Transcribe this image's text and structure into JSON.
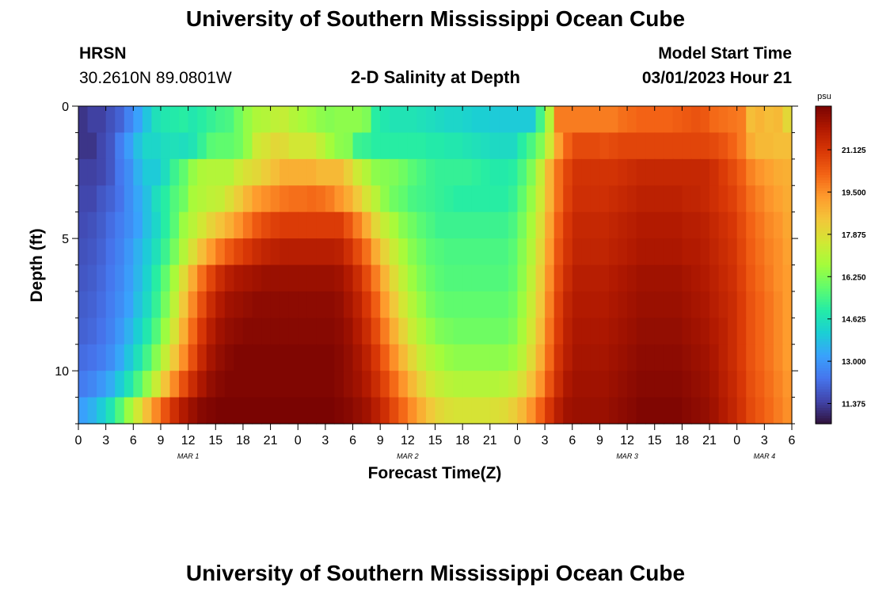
{
  "header": {
    "title_top": "University of Southern Mississippi Ocean Cube",
    "title_bottom": "University of Southern Mississippi Ocean Cube",
    "station": "HRSN",
    "coords": "30.2610N  89.0801W",
    "plot_title": "2-D Salinity at Depth",
    "model_label": "Model Start Time",
    "model_time": "03/01/2023 Hour 21"
  },
  "chart_data": {
    "type": "heatmap",
    "title": "2-D Salinity at Depth",
    "xlabel": "Forecast Time(Z)",
    "ylabel": "Depth (ft)",
    "x_ticks": [
      "0",
      "3",
      "6",
      "9",
      "12",
      "15",
      "18",
      "21",
      "0",
      "3",
      "6",
      "9",
      "12",
      "15",
      "18",
      "21",
      "0",
      "3",
      "6",
      "9",
      "12",
      "15",
      "18",
      "21",
      "0",
      "3",
      "6"
    ],
    "day_labels": [
      {
        "label": "MAR 1",
        "tick_index": 4
      },
      {
        "label": "MAR 2",
        "tick_index": 12
      },
      {
        "label": "MAR 3",
        "tick_index": 20
      },
      {
        "label": "MAR 4",
        "tick_index": 25
      }
    ],
    "hours": 78,
    "y_ticks": [
      0,
      5,
      10
    ],
    "y_range": [
      0,
      12
    ],
    "depth_levels": 12,
    "colorbar": {
      "unit": "psu",
      "vmin": 10.6,
      "vmax": 22.8,
      "ticks": [
        "11.375",
        "13.000",
        "14.625",
        "16.250",
        "17.875",
        "19.500",
        "21.125"
      ],
      "tick_values": [
        11.375,
        13.0,
        14.625,
        16.25,
        17.875,
        19.5,
        21.125
      ]
    },
    "colormap": [
      "#30123b",
      "#4145ab",
      "#4675ed",
      "#39a2fc",
      "#1bcfd4",
      "#24eca6",
      "#61fc6c",
      "#a4fc3b",
      "#d1e834",
      "#f3c63a",
      "#fe9b2d",
      "#f36315",
      "#d93806",
      "#b11901",
      "#7a0402"
    ],
    "salinity_grid": [
      [
        11.2,
        11.4,
        11.4,
        11.7,
        12.0,
        12.6,
        13.2,
        13.9,
        14.6,
        14.8,
        14.9,
        15.0,
        14.8,
        15.0,
        15.2,
        15.4,
        15.5,
        16.0,
        16.5,
        16.9,
        17.0,
        17.2,
        17.3,
        17.0,
        16.8,
        16.6,
        16.4,
        16.3,
        16.4,
        16.4,
        16.4,
        16.2,
        15.0,
        14.8,
        14.7,
        14.7,
        14.7,
        14.6,
        14.5,
        14.4,
        14.3,
        14.3,
        14.2,
        14.1,
        14.1,
        14.0,
        14.0,
        14.0,
        14.0,
        14.0,
        15.4,
        17.0,
        19.8,
        19.8,
        19.8,
        19.8,
        19.8,
        19.8,
        19.8,
        20.0,
        20.1,
        20.2,
        20.2,
        20.2,
        20.2,
        20.3,
        20.4,
        20.5,
        20.4,
        20.1,
        20.0,
        19.9,
        19.8,
        18.6,
        18.8,
        18.6,
        18.7,
        18.0
      ],
      [
        11.2,
        11.2,
        11.5,
        11.8,
        12.5,
        13.1,
        13.8,
        14.3,
        14.3,
        14.5,
        14.6,
        14.5,
        14.7,
        15.2,
        15.7,
        15.8,
        15.8,
        16.0,
        16.5,
        17.5,
        17.7,
        18.0,
        17.9,
        17.6,
        17.6,
        17.6,
        17.2,
        16.7,
        16.4,
        16.3,
        15.3,
        15.2,
        15.0,
        15.0,
        15.0,
        15.0,
        15.0,
        15.0,
        14.9,
        14.9,
        14.8,
        14.8,
        14.7,
        14.6,
        14.5,
        14.4,
        14.4,
        14.4,
        15.0,
        15.5,
        16.2,
        17.5,
        19.2,
        20.2,
        20.7,
        20.7,
        20.7,
        20.6,
        20.7,
        20.8,
        20.8,
        20.8,
        20.8,
        20.8,
        20.8,
        20.8,
        20.8,
        20.8,
        20.8,
        20.7,
        20.5,
        20.2,
        19.8,
        19.0,
        18.7,
        18.7,
        18.6,
        18.6
      ],
      [
        11.4,
        11.4,
        11.5,
        11.8,
        12.4,
        12.8,
        13.5,
        14.0,
        14.0,
        14.5,
        15.3,
        15.8,
        16.5,
        16.9,
        17.0,
        17.0,
        17.0,
        17.5,
        17.8,
        18.0,
        18.3,
        18.6,
        18.9,
        18.9,
        18.9,
        18.9,
        18.7,
        18.7,
        18.7,
        18.2,
        17.5,
        17.0,
        16.4,
        16.3,
        16.2,
        16.0,
        15.7,
        15.5,
        15.3,
        15.2,
        15.2,
        15.2,
        15.2,
        15.1,
        15.0,
        14.9,
        14.9,
        15.0,
        15.5,
        16.2,
        17.3,
        18.8,
        20.0,
        20.8,
        21.2,
        21.2,
        21.2,
        21.2,
        21.2,
        21.3,
        21.4,
        21.5,
        21.5,
        21.5,
        21.5,
        21.5,
        21.5,
        21.5,
        21.5,
        21.3,
        21.0,
        20.7,
        20.3,
        19.7,
        19.4,
        19.2,
        19.0,
        18.9
      ],
      [
        11.5,
        11.5,
        11.8,
        12.0,
        12.3,
        12.8,
        13.3,
        13.8,
        14.5,
        15.0,
        15.6,
        16.0,
        16.8,
        17.0,
        17.2,
        17.3,
        17.8,
        18.3,
        18.8,
        19.3,
        19.5,
        19.7,
        19.9,
        20.0,
        20.0,
        20.1,
        20.0,
        19.8,
        19.4,
        19.0,
        18.4,
        17.7,
        17.1,
        16.4,
        16.0,
        15.8,
        15.5,
        15.4,
        15.3,
        15.2,
        15.1,
        15.0,
        15.0,
        15.0,
        15.0,
        15.0,
        15.0,
        15.2,
        15.8,
        16.5,
        17.5,
        18.8,
        20.0,
        20.9,
        21.3,
        21.3,
        21.3,
        21.3,
        21.4,
        21.5,
        21.6,
        21.7,
        21.7,
        21.7,
        21.7,
        21.7,
        21.6,
        21.6,
        21.5,
        21.3,
        21.1,
        20.9,
        20.5,
        20.0,
        19.7,
        19.4,
        19.2,
        19.0
      ],
      [
        11.6,
        11.7,
        11.9,
        12.2,
        12.5,
        12.8,
        13.2,
        13.8,
        14.3,
        15.0,
        15.7,
        16.6,
        17.1,
        17.6,
        18.1,
        18.5,
        18.9,
        19.4,
        19.9,
        20.4,
        20.7,
        20.9,
        21.0,
        21.0,
        21.0,
        21.0,
        21.0,
        21.0,
        21.0,
        20.5,
        19.8,
        19.0,
        18.0,
        17.3,
        16.8,
        16.3,
        16.0,
        15.7,
        15.5,
        15.3,
        15.3,
        15.3,
        15.3,
        15.3,
        15.3,
        15.3,
        15.3,
        15.5,
        16.1,
        16.8,
        17.8,
        19.1,
        20.3,
        21.1,
        21.5,
        21.5,
        21.5,
        21.5,
        21.6,
        21.7,
        21.8,
        21.9,
        21.9,
        21.9,
        21.9,
        21.9,
        21.8,
        21.8,
        21.7,
        21.5,
        21.3,
        21.1,
        20.7,
        20.2,
        19.9,
        19.6,
        19.4,
        19.1
      ],
      [
        11.7,
        11.8,
        12.0,
        12.3,
        12.6,
        13.0,
        13.5,
        14.0,
        14.6,
        15.3,
        16.1,
        17.0,
        17.8,
        18.6,
        19.3,
        19.9,
        20.4,
        20.8,
        21.1,
        21.4,
        21.6,
        21.7,
        21.8,
        21.8,
        21.8,
        21.8,
        21.8,
        21.8,
        21.7,
        21.3,
        20.7,
        20.0,
        19.0,
        18.1,
        17.4,
        16.8,
        16.3,
        16.0,
        15.7,
        15.6,
        15.5,
        15.5,
        15.5,
        15.5,
        15.5,
        15.5,
        15.5,
        15.7,
        16.3,
        17.0,
        18.0,
        19.3,
        20.5,
        21.2,
        21.6,
        21.6,
        21.6,
        21.6,
        21.7,
        21.8,
        21.9,
        22.0,
        22.0,
        22.0,
        22.0,
        22.0,
        21.9,
        21.9,
        21.8,
        21.6,
        21.4,
        21.2,
        20.8,
        20.3,
        20.0,
        19.7,
        19.5,
        19.2
      ],
      [
        11.8,
        11.9,
        12.1,
        12.4,
        12.7,
        13.1,
        13.6,
        14.2,
        15.0,
        15.8,
        16.8,
        17.9,
        19.0,
        20.0,
        20.8,
        21.4,
        21.8,
        22.0,
        22.1,
        22.2,
        22.3,
        22.3,
        22.3,
        22.3,
        22.3,
        22.3,
        22.3,
        22.3,
        22.2,
        21.9,
        21.4,
        20.7,
        19.8,
        18.8,
        17.9,
        17.2,
        16.6,
        16.2,
        15.9,
        15.7,
        15.6,
        15.6,
        15.6,
        15.6,
        15.6,
        15.6,
        15.6,
        15.8,
        16.4,
        17.2,
        18.2,
        19.5,
        20.7,
        21.4,
        21.8,
        21.8,
        21.8,
        21.8,
        21.9,
        22.0,
        22.1,
        22.2,
        22.2,
        22.2,
        22.2,
        22.2,
        22.1,
        22.0,
        21.9,
        21.7,
        21.5,
        21.3,
        20.9,
        20.4,
        20.1,
        19.8,
        19.5,
        19.3
      ],
      [
        11.9,
        12.0,
        12.2,
        12.5,
        12.8,
        13.2,
        13.8,
        14.4,
        15.2,
        16.1,
        17.2,
        18.4,
        19.6,
        20.6,
        21.4,
        21.9,
        22.2,
        22.3,
        22.4,
        22.5,
        22.5,
        22.5,
        22.5,
        22.5,
        22.5,
        22.5,
        22.5,
        22.5,
        22.4,
        22.1,
        21.7,
        21.1,
        20.3,
        19.3,
        18.4,
        17.6,
        17.0,
        16.5,
        16.1,
        15.9,
        15.8,
        15.8,
        15.8,
        15.8,
        15.8,
        15.8,
        15.8,
        16.0,
        16.6,
        17.4,
        18.4,
        19.7,
        20.9,
        21.6,
        21.9,
        21.9,
        21.9,
        21.9,
        22.0,
        22.1,
        22.2,
        22.3,
        22.3,
        22.3,
        22.3,
        22.3,
        22.2,
        22.1,
        22.0,
        21.8,
        21.6,
        21.4,
        21.0,
        20.5,
        20.2,
        19.9,
        19.6,
        19.3
      ],
      [
        12.0,
        12.1,
        12.3,
        12.6,
        13.0,
        13.5,
        14.1,
        14.8,
        15.6,
        16.6,
        17.7,
        18.9,
        20.1,
        21.1,
        21.8,
        22.2,
        22.4,
        22.5,
        22.6,
        22.6,
        22.6,
        22.6,
        22.6,
        22.6,
        22.6,
        22.6,
        22.6,
        22.6,
        22.5,
        22.3,
        21.9,
        21.4,
        20.7,
        19.8,
        18.9,
        18.1,
        17.4,
        16.9,
        16.5,
        16.2,
        16.1,
        16.0,
        16.0,
        16.0,
        16.0,
        16.0,
        16.0,
        16.2,
        16.8,
        17.6,
        18.6,
        19.9,
        21.0,
        21.7,
        22.0,
        22.0,
        22.0,
        22.0,
        22.1,
        22.2,
        22.3,
        22.4,
        22.4,
        22.4,
        22.4,
        22.4,
        22.3,
        22.2,
        22.1,
        21.9,
        21.7,
        21.4,
        21.0,
        20.5,
        20.2,
        19.9,
        19.6,
        19.3
      ],
      [
        12.2,
        12.3,
        12.5,
        12.8,
        13.3,
        13.9,
        14.6,
        15.4,
        16.3,
        17.3,
        18.4,
        19.5,
        20.6,
        21.5,
        22.1,
        22.4,
        22.6,
        22.7,
        22.7,
        22.7,
        22.7,
        22.7,
        22.7,
        22.7,
        22.7,
        22.7,
        22.7,
        22.7,
        22.6,
        22.4,
        22.1,
        21.7,
        21.1,
        20.3,
        19.5,
        18.7,
        18.0,
        17.4,
        17.0,
        16.7,
        16.5,
        16.4,
        16.4,
        16.4,
        16.4,
        16.4,
        16.4,
        16.6,
        17.1,
        17.9,
        18.9,
        20.1,
        21.2,
        21.8,
        22.1,
        22.1,
        22.1,
        22.1,
        22.2,
        22.3,
        22.4,
        22.5,
        22.5,
        22.5,
        22.5,
        22.5,
        22.4,
        22.3,
        22.2,
        22.0,
        21.7,
        21.4,
        21.0,
        20.5,
        20.2,
        19.9,
        19.6,
        19.3
      ],
      [
        12.5,
        12.7,
        13.0,
        13.4,
        14.0,
        14.7,
        15.5,
        16.4,
        17.4,
        18.5,
        19.6,
        20.6,
        21.4,
        22.0,
        22.4,
        22.6,
        22.7,
        22.7,
        22.7,
        22.7,
        22.7,
        22.7,
        22.7,
        22.7,
        22.7,
        22.7,
        22.7,
        22.7,
        22.6,
        22.4,
        22.2,
        21.9,
        21.4,
        20.8,
        20.1,
        19.4,
        18.7,
        18.1,
        17.6,
        17.3,
        17.1,
        17.0,
        17.0,
        17.0,
        17.0,
        17.0,
        17.1,
        17.3,
        17.8,
        18.5,
        19.4,
        20.5,
        21.4,
        22.0,
        22.2,
        22.2,
        22.2,
        22.2,
        22.3,
        22.4,
        22.5,
        22.6,
        22.6,
        22.6,
        22.6,
        22.6,
        22.5,
        22.4,
        22.3,
        22.1,
        21.8,
        21.5,
        21.1,
        20.6,
        20.3,
        20.0,
        19.7,
        19.4
      ],
      [
        13.2,
        13.5,
        14.0,
        14.7,
        15.6,
        16.6,
        17.6,
        18.6,
        19.6,
        20.5,
        21.3,
        21.9,
        22.3,
        22.6,
        22.7,
        22.8,
        22.8,
        22.8,
        22.8,
        22.8,
        22.8,
        22.8,
        22.8,
        22.8,
        22.8,
        22.8,
        22.8,
        22.8,
        22.7,
        22.6,
        22.4,
        22.2,
        21.8,
        21.3,
        20.7,
        20.1,
        19.5,
        18.9,
        18.4,
        18.0,
        17.8,
        17.7,
        17.7,
        17.7,
        17.7,
        17.8,
        17.9,
        18.2,
        18.7,
        19.4,
        20.2,
        21.1,
        21.8,
        22.2,
        22.3,
        22.3,
        22.3,
        22.3,
        22.4,
        22.5,
        22.6,
        22.7,
        22.7,
        22.7,
        22.7,
        22.7,
        22.6,
        22.5,
        22.4,
        22.2,
        21.9,
        21.6,
        21.2,
        20.7,
        20.4,
        20.1,
        19.8,
        19.5
      ]
    ]
  }
}
